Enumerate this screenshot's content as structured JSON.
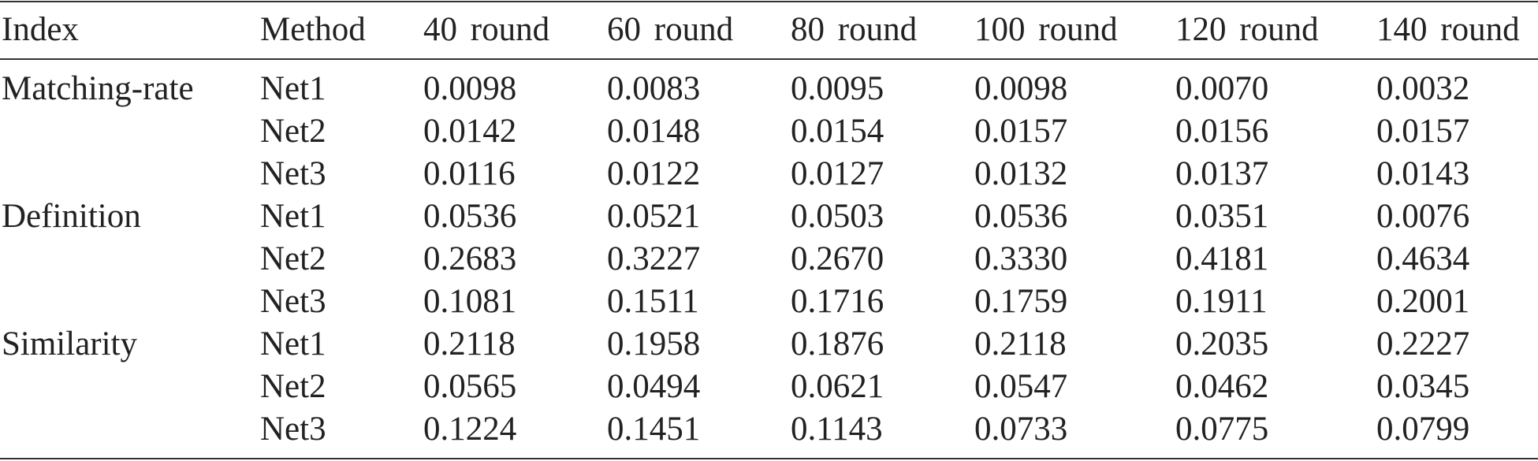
{
  "table": {
    "headers": [
      "Index",
      "Method",
      "40 round",
      "60 round",
      "80 round",
      "100 round",
      "120 round",
      "140 round"
    ],
    "rows": [
      [
        "Matching-rate",
        "Net1",
        "0.0098",
        "0.0083",
        "0.0095",
        "0.0098",
        "0.0070",
        "0.0032"
      ],
      [
        "",
        "Net2",
        "0.0142",
        "0.0148",
        "0.0154",
        "0.0157",
        "0.0156",
        "0.0157"
      ],
      [
        "",
        "Net3",
        "0.0116",
        "0.0122",
        "0.0127",
        "0.0132",
        "0.0137",
        "0.0143"
      ],
      [
        "Definition",
        "Net1",
        "0.0536",
        "0.0521",
        "0.0503",
        "0.0536",
        "0.0351",
        "0.0076"
      ],
      [
        "",
        "Net2",
        "0.2683",
        "0.3227",
        "0.2670",
        "0.3330",
        "0.4181",
        "0.4634"
      ],
      [
        "",
        "Net3",
        "0.1081",
        "0.1511",
        "0.1716",
        "0.1759",
        "0.1911",
        "0.2001"
      ],
      [
        "Similarity",
        "Net1",
        "0.2118",
        "0.1958",
        "0.1876",
        "0.2118",
        "0.2035",
        "0.2227"
      ],
      [
        "",
        "Net2",
        "0.0565",
        "0.0494",
        "0.0621",
        "0.0547",
        "0.0462",
        "0.0345"
      ],
      [
        "",
        "Net3",
        "0.1224",
        "0.1451",
        "0.1143",
        "0.0733",
        "0.0775",
        "0.0799"
      ]
    ]
  }
}
